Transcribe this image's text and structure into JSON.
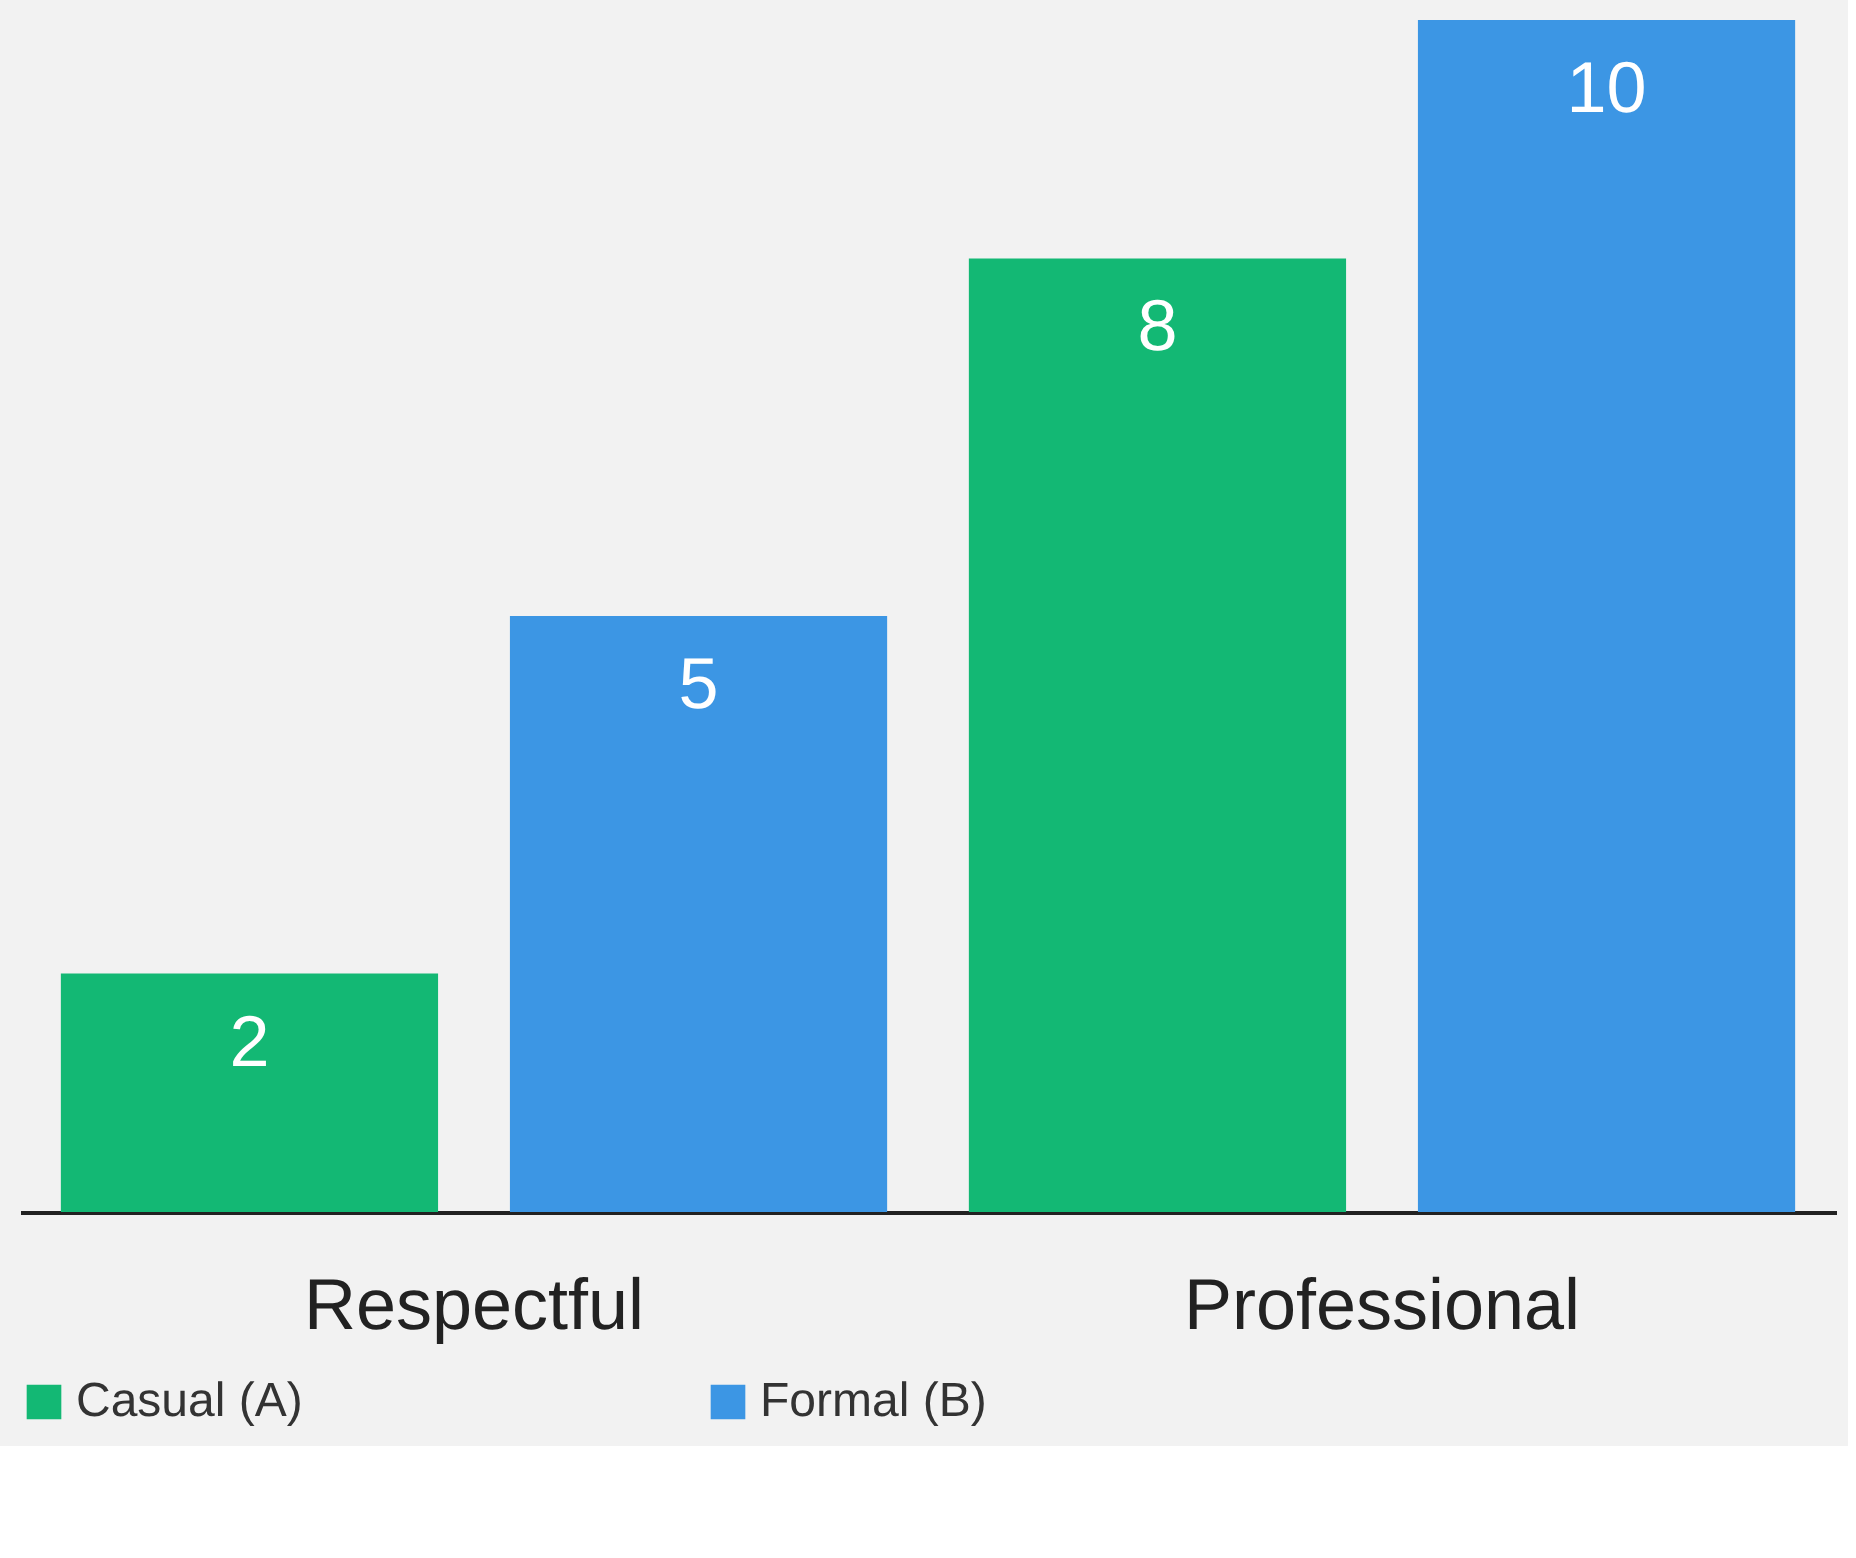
{
  "chart_data": {
    "type": "bar",
    "categories": [
      "Respectful",
      "Professional"
    ],
    "series": [
      {
        "name": "Casual (A)",
        "color": "#13b874",
        "values": [
          2,
          8
        ]
      },
      {
        "name": "Formal (B)",
        "color": "#3c96e4",
        "values": [
          5,
          10
        ]
      }
    ],
    "data_labels": true,
    "legend": "bottom",
    "grid": false
  }
}
